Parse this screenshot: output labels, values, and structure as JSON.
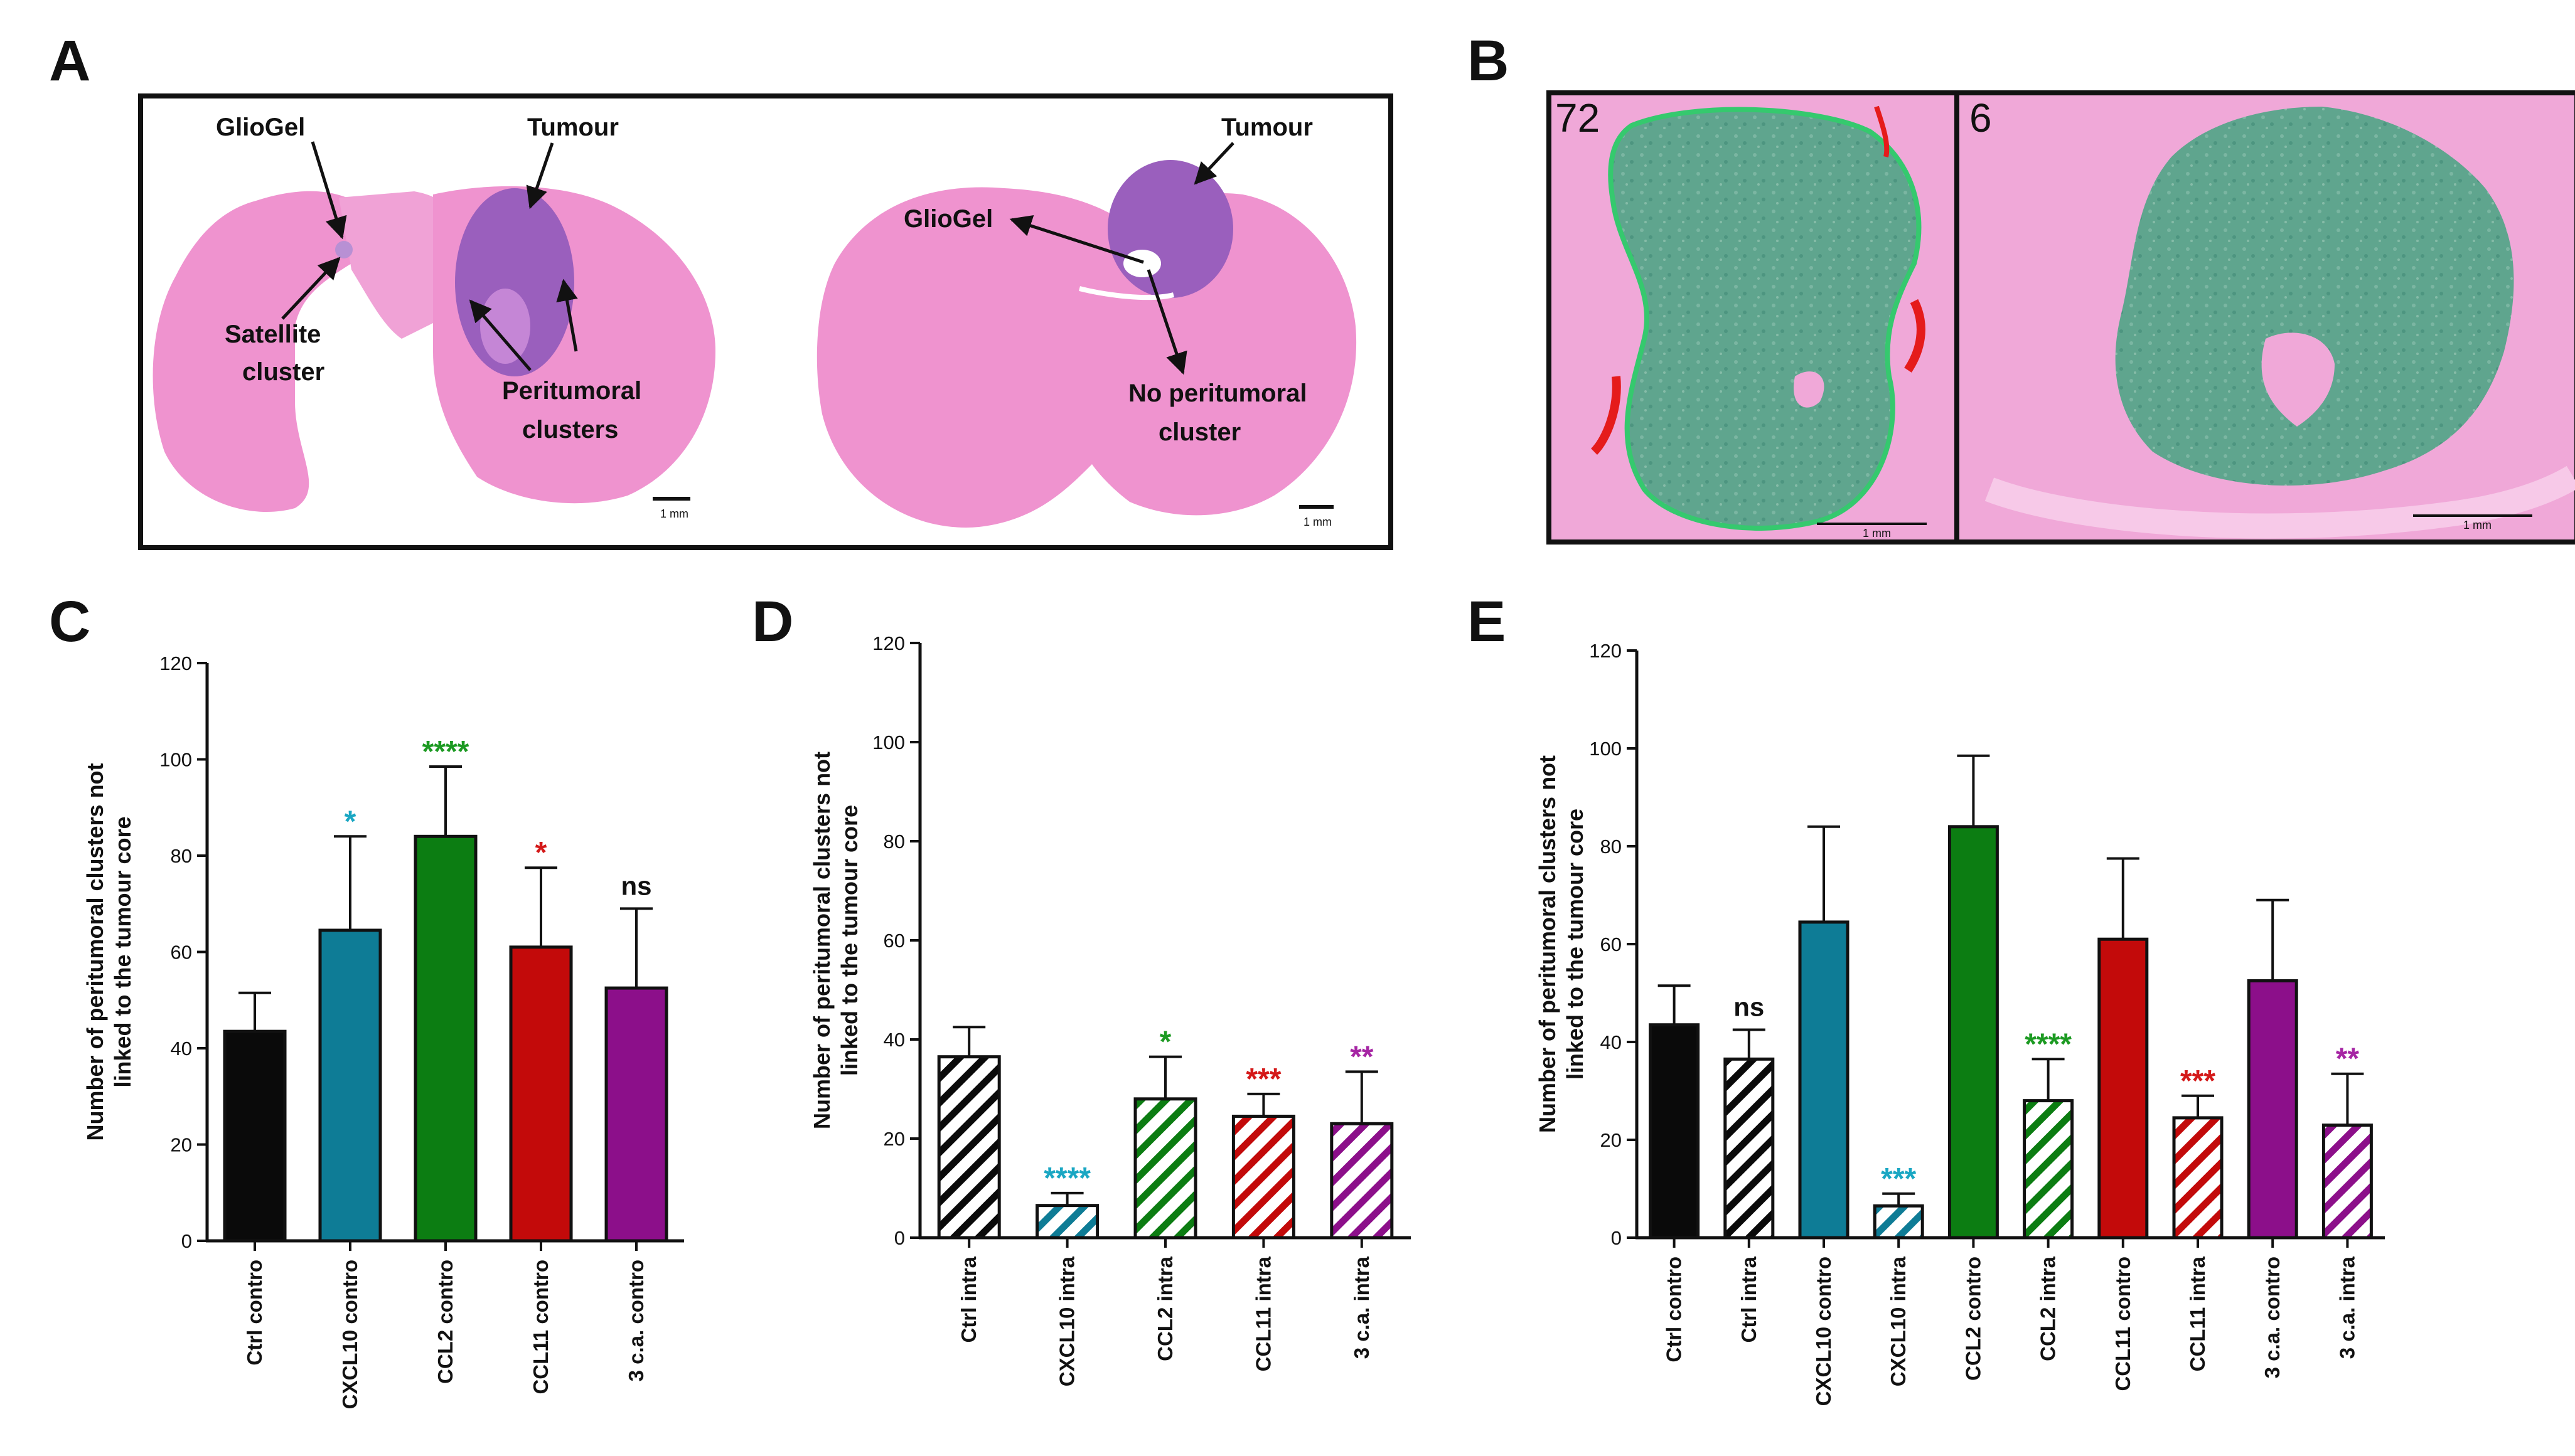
{
  "panels": {
    "a": "A",
    "b": "B",
    "c": "C",
    "d": "D",
    "e": "E"
  },
  "panel_a": {
    "left": {
      "gliogel": "GlioGel",
      "tumour": "Tumour",
      "satellite_1": "Satellite",
      "satellite_2": "cluster",
      "peritumoral_1": "Peritumoral",
      "peritumoral_2": "clusters",
      "scale": "1 mm"
    },
    "right": {
      "tumour": "Tumour",
      "gliogel": "GlioGel",
      "no_peri_1": "No peritumoral",
      "no_peri_2": "cluster",
      "scale": "1 mm"
    }
  },
  "panel_b": {
    "left_label": "72",
    "right_label": "6",
    "scale": "1 mm"
  },
  "ylabel_line1": "Number of peritumoral clusters not",
  "ylabel_line2": "linked to the tumour core",
  "colors": {
    "ctrl": "#0a0a0a",
    "cxcl10": "#0e7c96",
    "ccl2": "#0c7d12",
    "ccl11": "#c30a0a",
    "ca3": "#8c0f8a",
    "sig_cyan": "#1aa7c3",
    "sig_green": "#1c9a22",
    "sig_red": "#d41919",
    "sig_purple": "#a626a4",
    "tissue": "#ef93cf",
    "tumour": "#9a5fbd",
    "green_overlay": "#5fa58e"
  },
  "chart_data": [
    {
      "type": "bar",
      "panel": "C",
      "ylim": [
        0,
        120
      ],
      "yticks": [
        0,
        20,
        40,
        60,
        80,
        100,
        120
      ],
      "ylabel": "Number of peritumoral clusters not linked to the tumour core",
      "categories": [
        "Ctrl contro",
        "CXCL10 contro",
        "CCL2 contro",
        "CCL11 contro",
        "3 c.a. contro"
      ],
      "values": [
        43.5,
        64.5,
        84,
        61,
        52.5
      ],
      "errors": [
        8,
        19.5,
        14.5,
        16.5,
        16.5
      ],
      "hatched": [
        false,
        false,
        false,
        false,
        false
      ],
      "colors": [
        "ctrl",
        "cxcl10",
        "ccl2",
        "ccl11",
        "ca3"
      ],
      "annotations": [
        "",
        "*",
        "****",
        "*",
        "ns"
      ],
      "annotation_colors": [
        "",
        "sig_cyan",
        "sig_green",
        "sig_red",
        "black"
      ]
    },
    {
      "type": "bar",
      "panel": "D",
      "ylim": [
        0,
        120
      ],
      "yticks": [
        0,
        20,
        40,
        60,
        80,
        100,
        120
      ],
      "ylabel": "Number of peritumoral clusters not linked to the tumour core",
      "categories": [
        "Ctrl intra",
        "CXCL10 intra",
        "CCL2 intra",
        "CCL11 intra",
        "3 c.a. intra"
      ],
      "values": [
        36.5,
        6.5,
        28,
        24.5,
        23
      ],
      "errors": [
        6,
        2.5,
        8.5,
        4.5,
        10.5
      ],
      "hatched": [
        true,
        true,
        true,
        true,
        true
      ],
      "colors": [
        "ctrl",
        "cxcl10",
        "ccl2",
        "ccl11",
        "ca3"
      ],
      "annotations": [
        "",
        "****",
        "*",
        "***",
        "**"
      ],
      "annotation_colors": [
        "",
        "sig_cyan",
        "sig_green",
        "sig_red",
        "sig_purple"
      ]
    },
    {
      "type": "bar",
      "panel": "E",
      "ylim": [
        0,
        120
      ],
      "yticks": [
        0,
        20,
        40,
        60,
        80,
        100,
        120
      ],
      "ylabel": "Number of peritumoral clusters not linked to the tumour core",
      "categories": [
        "Ctrl contro",
        "Ctrl intra",
        "CXCL10 contro",
        "CXCL10 intra",
        "CCL2 contro",
        "CCL2 intra",
        "CCL11 contro",
        "CCL11 intra",
        "3 c.a. contro",
        "3 c.a. intra"
      ],
      "values": [
        43.5,
        36.5,
        64.5,
        6.5,
        84,
        28,
        61,
        24.5,
        52.5,
        23
      ],
      "errors": [
        8,
        6,
        19.5,
        2.5,
        14.5,
        8.5,
        16.5,
        4.5,
        16.5,
        10.5
      ],
      "hatched": [
        false,
        true,
        false,
        true,
        false,
        true,
        false,
        true,
        false,
        true
      ],
      "colors": [
        "ctrl",
        "ctrl",
        "cxcl10",
        "cxcl10",
        "ccl2",
        "ccl2",
        "ccl11",
        "ccl11",
        "ca3",
        "ca3"
      ],
      "annotations": [
        "",
        "ns",
        "",
        "***",
        "",
        "****",
        "",
        "***",
        "",
        "**"
      ],
      "annotation_colors": [
        "",
        "black",
        "",
        "sig_cyan",
        "",
        "sig_green",
        "",
        "sig_red",
        "",
        "sig_purple"
      ]
    }
  ]
}
